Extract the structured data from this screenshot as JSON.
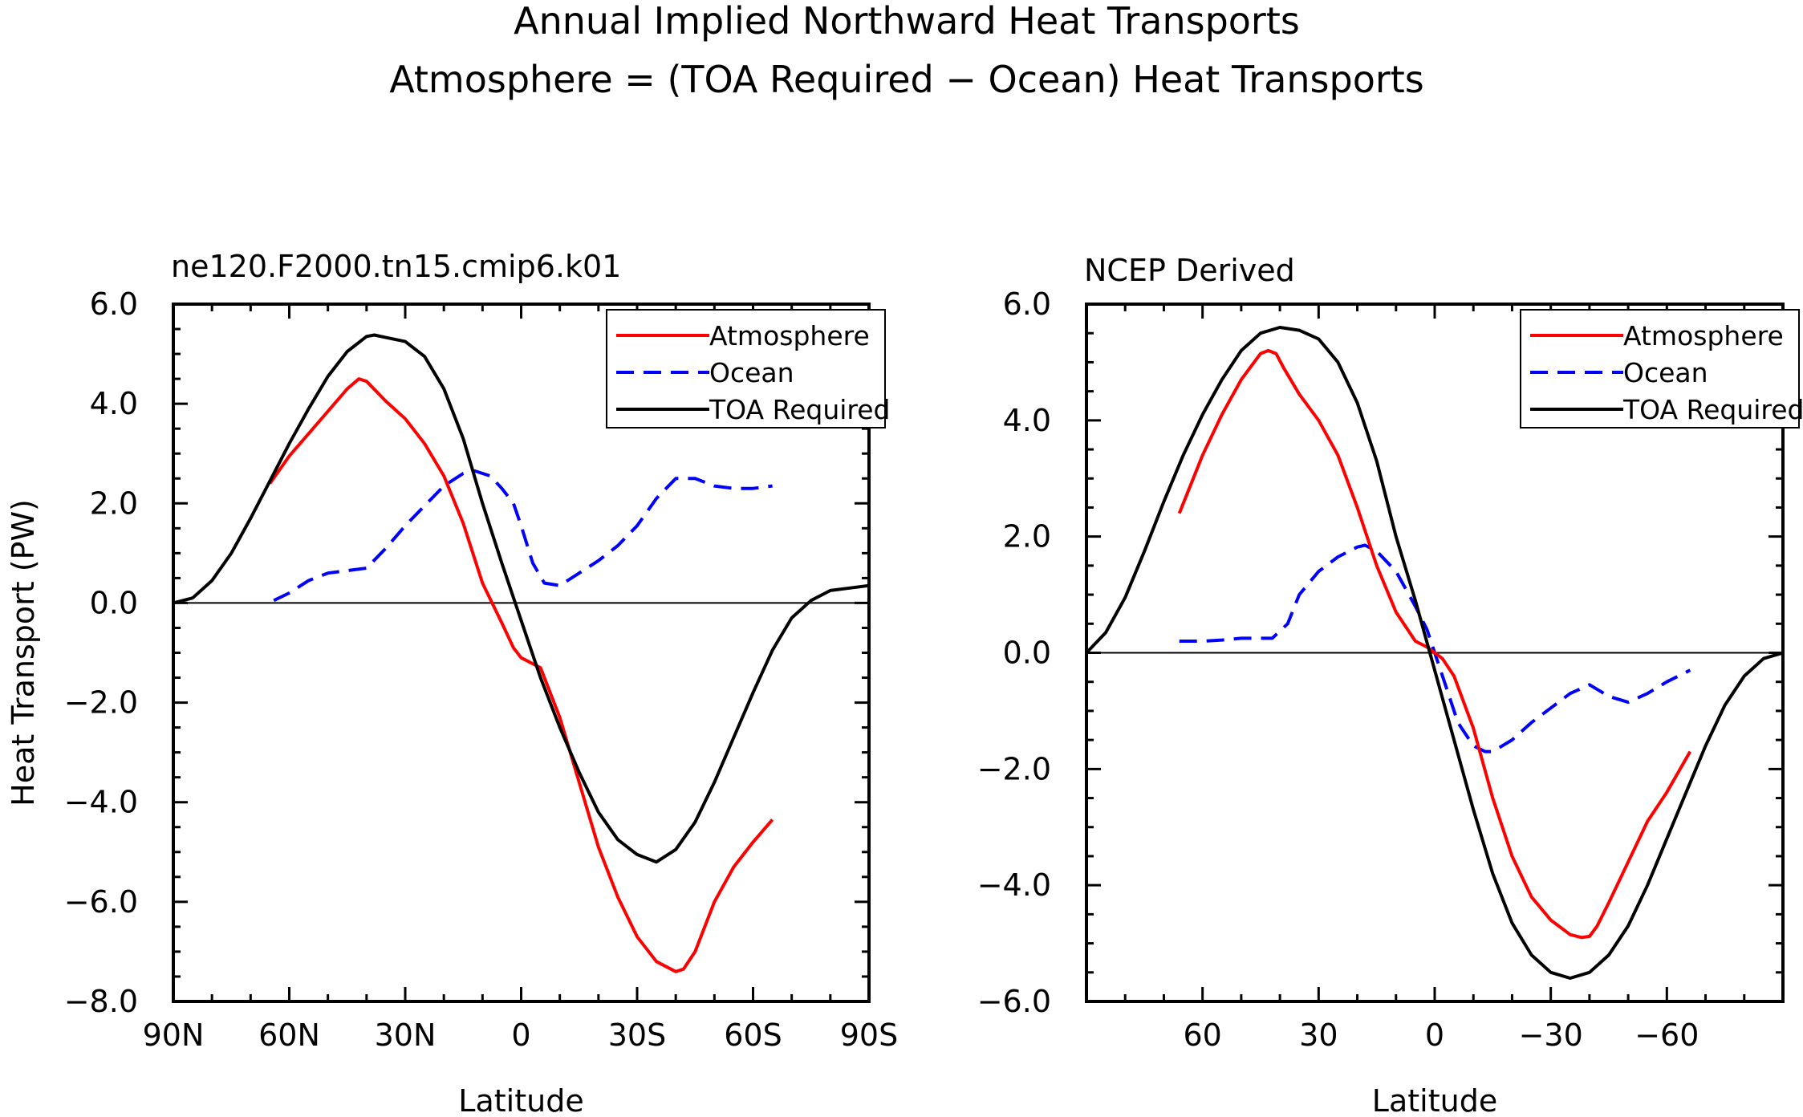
{
  "figure": {
    "title_line1": "Annual Implied Northward Heat Transports",
    "title_line2": "Atmosphere = (TOA Required − Ocean) Heat Transports"
  },
  "legend_labels": [
    "Atmosphere",
    "Ocean",
    "TOA Required"
  ],
  "colors": {
    "atmosphere": "#ff0000",
    "ocean": "#0000ff",
    "toa": "#000000"
  },
  "chart_data": [
    {
      "type": "line",
      "title": "ne120.F2000.tn15.cmip6.k01",
      "xlabel": "Latitude",
      "ylabel": "Heat Transport (PW)",
      "xlim": [
        90,
        -90
      ],
      "ylim": [
        -8,
        6
      ],
      "xticks": [
        90,
        60,
        30,
        0,
        -30,
        -60,
        -90
      ],
      "xtick_labels": [
        "90N",
        "60N",
        "30N",
        "0",
        "30S",
        "60S",
        "90S"
      ],
      "yticks": [
        6,
        4,
        2,
        0,
        -2,
        -4,
        -6,
        -8
      ],
      "ytick_labels": [
        "6.0",
        "4.0",
        "2.0",
        "0.0",
        "−2.0",
        "−4.0",
        "−6.0",
        "−8.0"
      ],
      "legend_position": "top-right",
      "zero_line": true,
      "series": [
        {
          "name": "Atmosphere",
          "color": "#ff0000",
          "dash": "solid",
          "x": [
            65,
            60,
            55,
            50,
            45,
            42,
            40,
            35,
            30,
            25,
            20,
            15,
            10,
            5,
            2,
            0,
            -5,
            -10,
            -15,
            -20,
            -25,
            -30,
            -35,
            -40,
            -42,
            -45,
            -50,
            -55,
            -60,
            -65
          ],
          "y": [
            2.4,
            2.95,
            3.4,
            3.85,
            4.3,
            4.5,
            4.45,
            4.05,
            3.7,
            3.2,
            2.55,
            1.6,
            0.4,
            -0.4,
            -0.9,
            -1.1,
            -1.3,
            -2.3,
            -3.6,
            -4.9,
            -5.9,
            -6.7,
            -7.2,
            -7.4,
            -7.35,
            -7.0,
            -6.0,
            -5.3,
            -4.8,
            -4.35
          ]
        },
        {
          "name": "Ocean",
          "color": "#0000ff",
          "dash": "dashed",
          "x": [
            64,
            60,
            55,
            50,
            45,
            40,
            35,
            30,
            25,
            20,
            15,
            12,
            8,
            5,
            2,
            0,
            -3,
            -6,
            -10,
            -15,
            -20,
            -25,
            -30,
            -35,
            -40,
            -45,
            -50,
            -55,
            -60,
            -65
          ],
          "y": [
            0.05,
            0.2,
            0.45,
            0.6,
            0.65,
            0.7,
            1.1,
            1.55,
            1.95,
            2.35,
            2.6,
            2.65,
            2.55,
            2.3,
            2.0,
            1.55,
            0.8,
            0.4,
            0.35,
            0.6,
            0.85,
            1.15,
            1.55,
            2.1,
            2.5,
            2.5,
            2.35,
            2.3,
            2.3,
            2.35
          ]
        },
        {
          "name": "TOA Required",
          "color": "#000000",
          "dash": "solid",
          "x": [
            90,
            85,
            80,
            75,
            70,
            65,
            60,
            55,
            50,
            45,
            40,
            38,
            35,
            30,
            25,
            20,
            15,
            10,
            5,
            0,
            -5,
            -10,
            -15,
            -20,
            -25,
            -30,
            -35,
            -40,
            -45,
            -50,
            -55,
            -60,
            -65,
            -70,
            -75,
            -80,
            -85,
            -90
          ],
          "y": [
            0,
            0.1,
            0.45,
            1.0,
            1.7,
            2.45,
            3.2,
            3.9,
            4.55,
            5.05,
            5.35,
            5.38,
            5.33,
            5.25,
            4.95,
            4.3,
            3.3,
            2.0,
            0.8,
            -0.35,
            -1.5,
            -2.5,
            -3.4,
            -4.2,
            -4.75,
            -5.05,
            -5.2,
            -4.95,
            -4.4,
            -3.6,
            -2.7,
            -1.8,
            -0.95,
            -0.3,
            0.05,
            0.25,
            0.3,
            0.35
          ]
        }
      ]
    },
    {
      "type": "line",
      "title": "NCEP Derived",
      "xlabel": "Latitude",
      "ylabel": "",
      "xlim": [
        90,
        -90
      ],
      "ylim": [
        -6,
        6
      ],
      "xticks": [
        60,
        30,
        0,
        -30,
        -60
      ],
      "xtick_labels": [
        "60",
        "30",
        "0",
        "−30",
        "−60"
      ],
      "yticks": [
        6,
        4,
        2,
        0,
        -2,
        -4,
        -6
      ],
      "ytick_labels": [
        "6.0",
        "4.0",
        "2.0",
        "0.0",
        "−2.0",
        "−4.0",
        "−6.0"
      ],
      "legend_position": "top-right",
      "zero_line": true,
      "series": [
        {
          "name": "Atmosphere",
          "color": "#ff0000",
          "dash": "solid",
          "x": [
            66,
            60,
            55,
            50,
            45,
            43,
            41,
            39,
            35,
            30,
            25,
            20,
            15,
            10,
            5,
            2,
            0,
            -2,
            -5,
            -10,
            -15,
            -20,
            -25,
            -30,
            -35,
            -38,
            -40,
            -42,
            -45,
            -50,
            -55,
            -60,
            -66
          ],
          "y": [
            2.4,
            3.4,
            4.1,
            4.7,
            5.15,
            5.2,
            5.15,
            4.9,
            4.45,
            4.0,
            3.4,
            2.5,
            1.5,
            0.7,
            0.2,
            0.1,
            0.0,
            -0.1,
            -0.4,
            -1.3,
            -2.5,
            -3.5,
            -4.2,
            -4.6,
            -4.85,
            -4.9,
            -4.88,
            -4.7,
            -4.3,
            -3.6,
            -2.9,
            -2.4,
            -1.7
          ]
        },
        {
          "name": "Ocean",
          "color": "#0000ff",
          "dash": "dashed",
          "x": [
            66,
            60,
            55,
            50,
            45,
            42,
            38,
            35,
            30,
            25,
            20,
            18,
            15,
            10,
            5,
            2,
            0,
            -3,
            -6,
            -10,
            -13,
            -15,
            -20,
            -25,
            -30,
            -35,
            -40,
            -45,
            -50,
            -55,
            -60,
            -66
          ],
          "y": [
            0.2,
            0.2,
            0.22,
            0.25,
            0.25,
            0.25,
            0.5,
            1.0,
            1.4,
            1.65,
            1.82,
            1.85,
            1.75,
            1.4,
            0.8,
            0.4,
            0.0,
            -0.6,
            -1.2,
            -1.6,
            -1.7,
            -1.7,
            -1.5,
            -1.2,
            -0.95,
            -0.7,
            -0.55,
            -0.75,
            -0.85,
            -0.7,
            -0.5,
            -0.3
          ]
        },
        {
          "name": "TOA Required",
          "color": "#000000",
          "dash": "solid",
          "x": [
            90,
            85,
            80,
            75,
            70,
            65,
            60,
            55,
            50,
            45,
            40,
            35,
            30,
            25,
            20,
            15,
            10,
            5,
            0,
            -5,
            -10,
            -15,
            -20,
            -25,
            -30,
            -35,
            -40,
            -45,
            -50,
            -55,
            -60,
            -65,
            -70,
            -75,
            -80,
            -85,
            -90
          ],
          "y": [
            0,
            0.35,
            0.95,
            1.75,
            2.6,
            3.4,
            4.1,
            4.7,
            5.2,
            5.5,
            5.6,
            5.55,
            5.4,
            5.0,
            4.3,
            3.3,
            2.0,
            0.9,
            -0.3,
            -1.5,
            -2.7,
            -3.8,
            -4.65,
            -5.2,
            -5.5,
            -5.6,
            -5.5,
            -5.2,
            -4.7,
            -4.0,
            -3.2,
            -2.4,
            -1.6,
            -0.9,
            -0.4,
            -0.1,
            0.0
          ]
        }
      ]
    }
  ]
}
